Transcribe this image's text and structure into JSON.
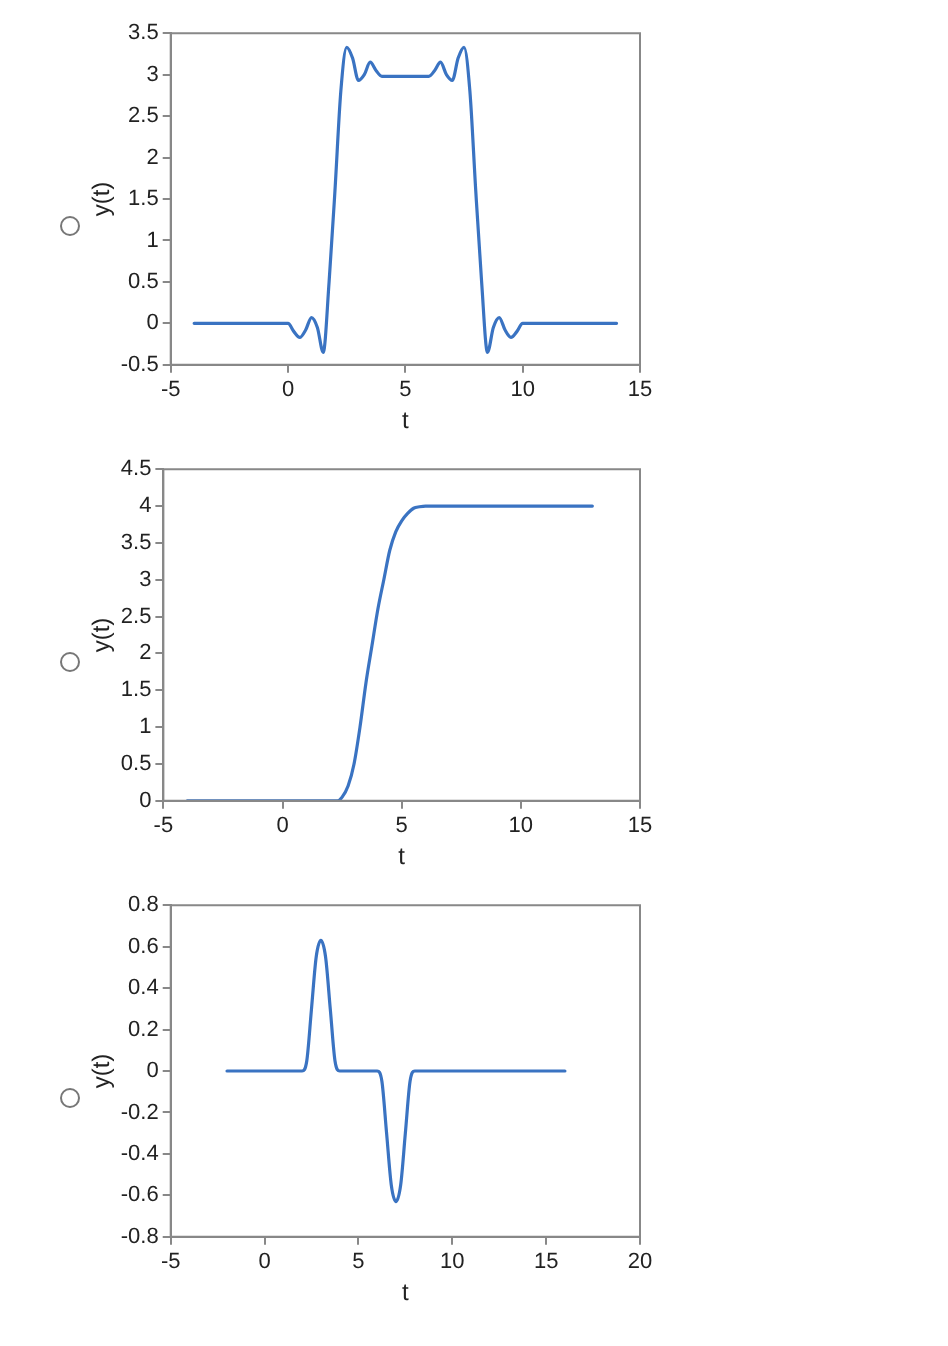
{
  "chart_data": [
    {
      "type": "line",
      "xlabel": "t",
      "ylabel": "y(t)",
      "xlim": [
        -5,
        15
      ],
      "xticks": [
        -5,
        0,
        5,
        10,
        15
      ],
      "ylim": [
        -0.5,
        3.5
      ],
      "yticks": [
        -0.5,
        0,
        0.5,
        1,
        1.5,
        2,
        2.5,
        3,
        3.5
      ],
      "series": [
        {
          "color": "#3a73c2",
          "x": [
            -4,
            0,
            0.25,
            0.5,
            0.75,
            1,
            1.25,
            1.5,
            1.75,
            2,
            2.25,
            2.5,
            2.75,
            3,
            3.25,
            3.5,
            3.75,
            4,
            6,
            6.25,
            6.5,
            6.75,
            7,
            7.25,
            7.5,
            7.75,
            8,
            8.25,
            8.5,
            8.75,
            9,
            9.25,
            9.5,
            9.75,
            10,
            14
          ],
          "values": [
            0,
            0,
            -0.1,
            -0.17,
            -0.08,
            0.07,
            -0.05,
            -0.35,
            0.5,
            1.6,
            2.8,
            3.33,
            3.2,
            2.93,
            3.0,
            3.15,
            3.05,
            2.98,
            2.98,
            3.05,
            3.15,
            3.0,
            2.93,
            3.2,
            3.33,
            2.8,
            1.6,
            0.5,
            -0.35,
            -0.05,
            0.07,
            -0.08,
            -0.17,
            -0.1,
            0,
            0
          ]
        }
      ]
    },
    {
      "type": "line",
      "xlabel": "t",
      "ylabel": "y(t)",
      "xlim": [
        -5,
        15
      ],
      "xticks": [
        -5,
        0,
        5,
        10,
        15
      ],
      "ylim": [
        0,
        4.5
      ],
      "yticks": [
        0,
        0.5,
        1,
        1.5,
        2,
        2.5,
        3,
        3.5,
        4,
        4.5
      ],
      "series": [
        {
          "color": "#3a73c2",
          "x": [
            -4,
            2.3,
            2.5,
            2.75,
            3,
            3.25,
            3.5,
            3.75,
            4,
            4.25,
            4.5,
            4.75,
            5,
            5.25,
            5.5,
            5.75,
            6,
            13
          ],
          "values": [
            0,
            0,
            0.05,
            0.2,
            0.5,
            1.0,
            1.6,
            2.1,
            2.6,
            3.0,
            3.4,
            3.65,
            3.8,
            3.9,
            3.97,
            3.99,
            4,
            4
          ]
        }
      ]
    },
    {
      "type": "line",
      "xlabel": "t",
      "ylabel": "y(t)",
      "xlim": [
        -5,
        20
      ],
      "xticks": [
        -5,
        0,
        5,
        10,
        15,
        20
      ],
      "ylim": [
        -0.8,
        0.8
      ],
      "yticks": [
        -0.8,
        -0.6,
        -0.4,
        -0.2,
        0,
        0.2,
        0.4,
        0.6,
        0.8
      ],
      "series": [
        {
          "color": "#3a73c2",
          "x": [
            -2,
            2,
            2.25,
            2.5,
            2.75,
            3,
            3.25,
            3.5,
            3.75,
            4,
            6,
            6.25,
            6.5,
            6.75,
            7,
            7.25,
            7.5,
            7.75,
            8,
            16
          ],
          "values": [
            0,
            0,
            0.05,
            0.3,
            0.55,
            0.63,
            0.55,
            0.3,
            0.05,
            0,
            0,
            -0.05,
            -0.3,
            -0.55,
            -0.63,
            -0.55,
            -0.3,
            -0.05,
            0,
            0
          ]
        }
      ]
    }
  ]
}
